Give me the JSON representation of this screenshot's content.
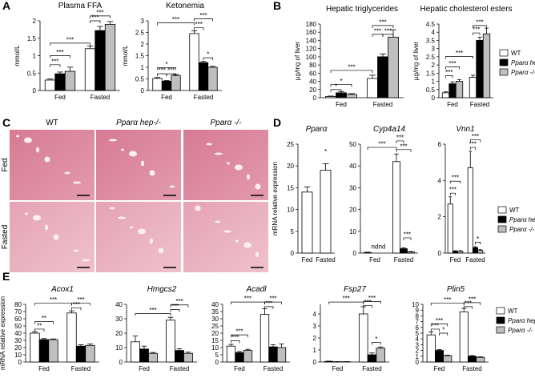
{
  "panel_labels": [
    "A",
    "B",
    "C",
    "D",
    "E"
  ],
  "histology": {
    "columns": [
      "WT",
      "Pparα hep-/-",
      "Pparα -/-"
    ],
    "rows": [
      "Fed",
      "Fasted"
    ]
  },
  "chart_data": [
    {
      "type": "bar",
      "title": "Plasma FFA",
      "ylabel": "mmol/L",
      "categories": [
        "Fed",
        "Fasted"
      ],
      "series": [
        {
          "name": "WT",
          "color": "#ffffff",
          "values": [
            0.3,
            1.2
          ],
          "errors": [
            0.03,
            0.08
          ]
        },
        {
          "name": "Pparα hep-/-",
          "color": "#000000",
          "values": [
            0.48,
            1.72
          ],
          "errors": [
            0.05,
            0.12
          ]
        },
        {
          "name": "Pparα -/-",
          "color": "#bfbfbf",
          "values": [
            0.55,
            1.9
          ],
          "errors": [
            0.12,
            0.08
          ]
        }
      ],
      "ylim": [
        0,
        2
      ],
      "yticks": [
        0,
        0.5,
        1,
        1.5,
        2
      ],
      "annotations": [
        "***",
        "***",
        "***",
        "***",
        "***"
      ]
    },
    {
      "type": "bar",
      "title": "Ketonemia",
      "ylabel": "mmol/L",
      "categories": [
        "Fed",
        "Fasted"
      ],
      "series": [
        {
          "name": "WT",
          "color": "#ffffff",
          "values": [
            0.52,
            2.45
          ],
          "errors": [
            0.04,
            0.12
          ]
        },
        {
          "name": "Pparα hep-/-",
          "color": "#000000",
          "values": [
            0.4,
            1.2
          ],
          "errors": [
            0.03,
            0.05
          ]
        },
        {
          "name": "Pparα -/-",
          "color": "#bfbfbf",
          "values": [
            0.65,
            1.0
          ],
          "errors": [
            0.04,
            0.04
          ]
        }
      ],
      "ylim": [
        0,
        3
      ],
      "yticks": [
        0,
        0.5,
        1,
        1.5,
        2,
        2.5,
        3
      ],
      "annotations": [
        "***",
        "*",
        "***",
        "***",
        "***",
        "***",
        "*"
      ]
    },
    {
      "type": "bar",
      "title": "Hepatic triglycerides",
      "ylabel": "µg/mg of liver",
      "categories": [
        "Fed",
        "Fasted"
      ],
      "series": [
        {
          "name": "WT",
          "color": "#ffffff",
          "values": [
            3,
            47
          ],
          "errors": [
            1,
            8
          ]
        },
        {
          "name": "Pparα hep-/-",
          "color": "#000000",
          "values": [
            12,
            100
          ],
          "errors": [
            3,
            7
          ]
        },
        {
          "name": "Pparα -/-",
          "color": "#bfbfbf",
          "values": [
            8,
            148
          ],
          "errors": [
            2,
            18
          ]
        }
      ],
      "ylim": [
        0,
        180
      ],
      "yticks": [
        0,
        20,
        40,
        60,
        80,
        100,
        120,
        140,
        160,
        180
      ],
      "annotations": [
        "*",
        "*",
        "***",
        "***",
        "***",
        "***"
      ]
    },
    {
      "type": "bar",
      "title": "Hepatic cholesterol esters",
      "ylabel": "µg/mg of liver",
      "categories": [
        "Fed",
        "Fasted"
      ],
      "legend": true,
      "series": [
        {
          "name": "WT",
          "color": "#ffffff",
          "values": [
            0.3,
            1.25
          ],
          "errors": [
            0.06,
            0.12
          ]
        },
        {
          "name": "Pparα hep-/-",
          "color": "#000000",
          "values": [
            0.85,
            3.5
          ],
          "errors": [
            0.12,
            0.2
          ]
        },
        {
          "name": "Pparα -/-",
          "color": "#bfbfbf",
          "values": [
            1.0,
            3.9
          ],
          "errors": [
            0.1,
            0.35
          ]
        }
      ],
      "ylim": [
        0,
        4.5
      ],
      "yticks": [
        0,
        0.5,
        1,
        1.5,
        2,
        2.5,
        3,
        3.5,
        4,
        4.5
      ],
      "annotations": [
        "***",
        "***",
        "***",
        "***",
        "***"
      ]
    },
    {
      "type": "bar",
      "title": "Pparα",
      "ylabel": "mRNA relative expression",
      "categories": [
        "Fed",
        "Fasted"
      ],
      "series": [
        {
          "name": "WT",
          "color": "#ffffff",
          "values": [
            14,
            19
          ],
          "errors": [
            1.2,
            1.5
          ]
        }
      ],
      "ylim": [
        0,
        25
      ],
      "yticks": [
        0,
        5,
        10,
        15,
        20,
        25
      ],
      "annotations": [
        "*"
      ]
    },
    {
      "type": "bar",
      "title": "Cyp4a14",
      "categories": [
        "Fed",
        "Fasted"
      ],
      "series": [
        {
          "name": "WT",
          "color": "#ffffff",
          "values": [
            0.3,
            42
          ],
          "errors": [
            0.1,
            3.5
          ]
        },
        {
          "name": "Pparα hep-/-",
          "color": "#000000",
          "values": [
            null,
            2
          ],
          "errors": [
            null,
            0.4
          ]
        },
        {
          "name": "Pparα -/-",
          "color": "#bfbfbf",
          "values": [
            null,
            0.5
          ],
          "errors": [
            null,
            0.2
          ]
        }
      ],
      "ylim": [
        0,
        50
      ],
      "yticks": [
        0,
        10,
        20,
        30,
        40,
        50
      ],
      "annotations": [
        "***",
        "nd",
        "nd",
        "***",
        "***",
        "***"
      ]
    },
    {
      "type": "bar",
      "title": "Vnn1",
      "categories": [
        "Fed",
        "Fasted"
      ],
      "legend": true,
      "series": [
        {
          "name": "WT",
          "color": "#ffffff",
          "values": [
            2.7,
            4.7
          ],
          "errors": [
            0.4,
            0.9
          ]
        },
        {
          "name": "Pparα hep-/-",
          "color": "#000000",
          "values": [
            0.1,
            0.3
          ],
          "errors": [
            0.03,
            0.05
          ]
        },
        {
          "name": "Pparα -/-",
          "color": "#bfbfbf",
          "values": [
            0.1,
            0.15
          ],
          "errors": [
            0.03,
            0.04
          ]
        }
      ],
      "ylim": [
        0,
        6
      ],
      "yticks": [
        0,
        2,
        4,
        6
      ],
      "annotations": [
        "***",
        "***",
        "***",
        "***",
        "*"
      ]
    },
    {
      "type": "bar",
      "title": "Acox1",
      "ylabel": "mRNA relative expression",
      "categories": [
        "Fed",
        "Fasted"
      ],
      "series": [
        {
          "name": "WT",
          "color": "#ffffff",
          "values": [
            40,
            68
          ],
          "errors": [
            2,
            3
          ]
        },
        {
          "name": "Pparα hep-/-",
          "color": "#000000",
          "values": [
            31,
            22
          ],
          "errors": [
            1.5,
            2
          ]
        },
        {
          "name": "Pparα -/-",
          "color": "#bfbfbf",
          "values": [
            31,
            23
          ],
          "errors": [
            1,
            2
          ]
        }
      ],
      "ylim": [
        0,
        80
      ],
      "yticks": [
        0,
        10,
        20,
        30,
        40,
        50,
        60,
        70,
        80
      ],
      "annotations": [
        "**",
        "**",
        "***",
        "***",
        "***"
      ]
    },
    {
      "type": "bar",
      "title": "Hmgcs2",
      "categories": [
        "Fed",
        "Fasted"
      ],
      "series": [
        {
          "name": "WT",
          "color": "#ffffff",
          "values": [
            14,
            29
          ],
          "errors": [
            4,
            2
          ]
        },
        {
          "name": "Pparα hep-/-",
          "color": "#000000",
          "values": [
            9,
            8
          ],
          "errors": [
            2,
            1.2
          ]
        },
        {
          "name": "Pparα -/-",
          "color": "#bfbfbf",
          "values": [
            6,
            6
          ],
          "errors": [
            0.6,
            0.8
          ]
        }
      ],
      "ylim": [
        0,
        40
      ],
      "yticks": [
        0,
        10,
        20,
        30,
        40
      ],
      "annotations": [
        "***",
        "***",
        "***"
      ]
    },
    {
      "type": "bar",
      "title": "Acadl",
      "categories": [
        "Fed",
        "Fasted"
      ],
      "series": [
        {
          "name": "WT",
          "color": "#ffffff",
          "values": [
            11,
            33
          ],
          "errors": [
            1.2,
            4
          ]
        },
        {
          "name": "Pparα hep-/-",
          "color": "#000000",
          "values": [
            6.5,
            10.5
          ],
          "errors": [
            0.8,
            1.5
          ]
        },
        {
          "name": "Pparα -/-",
          "color": "#bfbfbf",
          "values": [
            8,
            10
          ],
          "errors": [
            0.8,
            2.5
          ]
        }
      ],
      "ylim": [
        0,
        40
      ],
      "yticks": [
        0,
        5,
        10,
        15,
        20,
        25,
        30,
        35,
        40
      ],
      "annotations": [
        "***",
        "***",
        "***",
        "***",
        "***"
      ]
    },
    {
      "type": "bar",
      "title": "Fsp27",
      "categories": [
        "Fed",
        "Fasted"
      ],
      "series": [
        {
          "name": "WT",
          "color": "#ffffff",
          "values": [
            0.05,
            4.0
          ],
          "errors": [
            0.02,
            0.6
          ]
        },
        {
          "name": "Pparα hep-/-",
          "color": "#000000",
          "values": [
            0.02,
            0.6
          ],
          "errors": [
            0.01,
            0.15
          ]
        },
        {
          "name": "Pparα -/-",
          "color": "#bfbfbf",
          "values": [
            0.02,
            1.15
          ],
          "errors": [
            0.01,
            0.1
          ]
        }
      ],
      "ylim": [
        0,
        4.8
      ],
      "yticks": [
        0,
        1,
        2,
        3,
        4
      ],
      "annotations": [
        "***",
        "***",
        "***",
        "*"
      ]
    },
    {
      "type": "bar",
      "title": "Plin5",
      "categories": [
        "Fed",
        "Fasted"
      ],
      "legend": true,
      "series": [
        {
          "name": "WT",
          "color": "#ffffff",
          "values": [
            4.7,
            8.7
          ],
          "errors": [
            0.5,
            0.6
          ]
        },
        {
          "name": "Pparα hep-/-",
          "color": "#000000",
          "values": [
            2,
            1
          ],
          "errors": [
            0.15,
            0.1
          ]
        },
        {
          "name": "Pparα -/-",
          "color": "#bfbfbf",
          "values": [
            1.1,
            0.8
          ],
          "errors": [
            0.1,
            0.1
          ]
        }
      ],
      "ylim": [
        0,
        10
      ],
      "yticks": [
        0,
        1,
        2,
        3,
        4,
        5,
        6,
        7,
        8,
        9,
        10
      ],
      "annotations": [
        "***",
        "***",
        "*",
        "***",
        "***",
        "***"
      ]
    }
  ]
}
